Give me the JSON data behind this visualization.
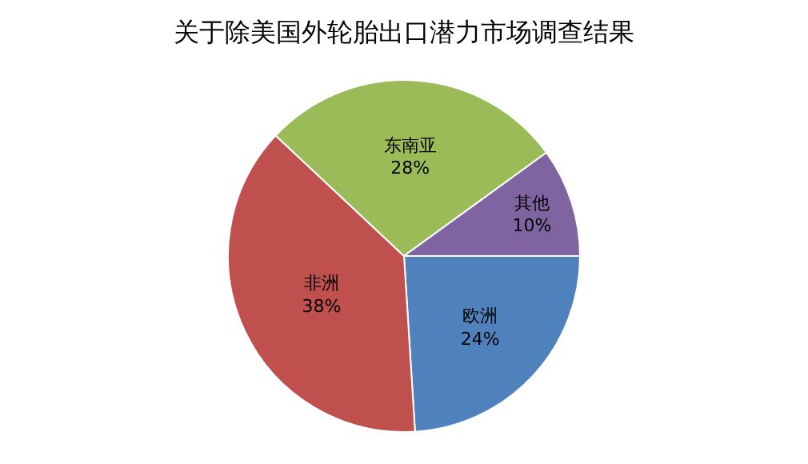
{
  "chart_data": {
    "type": "pie",
    "title": "关于除美国外轮胎出口潜力市场调查结果",
    "categories": [
      "欧洲",
      "非洲",
      "东南亚",
      "其他"
    ],
    "values": [
      24,
      38,
      28,
      10
    ],
    "value_labels": [
      "24%",
      "38%",
      "28%",
      "10%"
    ],
    "colors": [
      "#4f81bd",
      "#c0504d",
      "#9bbb59",
      "#8064a2"
    ],
    "legend": false
  }
}
